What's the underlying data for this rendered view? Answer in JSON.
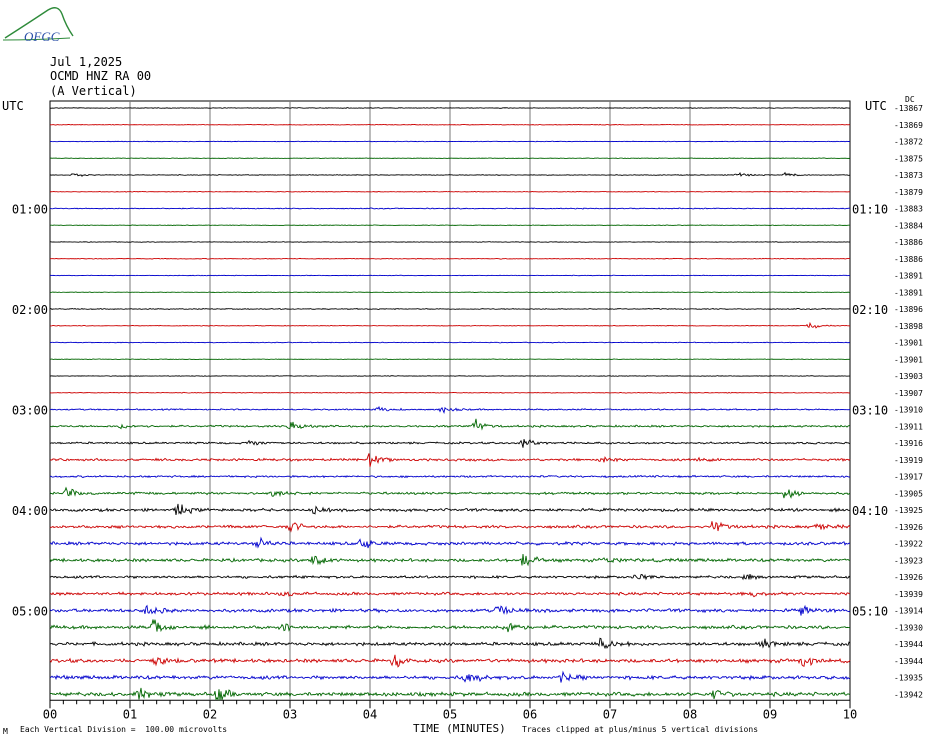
{
  "header": {
    "date": "Jul 1,2025",
    "station": "OCMD HNZ RA 00",
    "component": "(A Vertical)",
    "logo_text": "OFGC",
    "utc_left": "UTC",
    "utc_right": "UTC",
    "ordinate_label": "DC"
  },
  "footer": {
    "scale_note": "Each Vertical Division =  100.00 microvolts",
    "xlabel": "TIME (MINUTES)",
    "clip_note": "Traces clipped at plus/minus 5 vertical divisions",
    "corner_mark": "M"
  },
  "chart_data": {
    "type": "line",
    "title": "",
    "xlabel": "TIME (MINUTES)",
    "xlim": [
      0,
      10
    ],
    "x_ticks": [
      "00",
      "01",
      "02",
      "03",
      "04",
      "05",
      "06",
      "07",
      "08",
      "09",
      "10"
    ],
    "left_time_labels": [
      "01:00",
      "02:00",
      "03:00",
      "04:00",
      "05:00"
    ],
    "right_time_labels": [
      "01:10",
      "02:10",
      "03:10",
      "04:10",
      "05:10"
    ],
    "hour_label_rows": [
      6,
      12,
      18,
      24,
      30
    ],
    "trace_colors": [
      "#000000",
      "#cc0000",
      "#0000cc",
      "#006600"
    ],
    "dc_offsets": [
      -13867,
      -13869,
      -13872,
      -13875,
      -13873,
      -13879,
      -13883,
      -13884,
      -13886,
      -13886,
      -13891,
      -13891,
      -13896,
      -13898,
      -13901,
      -13901,
      -13903,
      -13907,
      -13910,
      -13911,
      -13916,
      -13919,
      -13917,
      -13905,
      -13925,
      -13926,
      -13922,
      -13923,
      -13926,
      -13939,
      -13914,
      -13930,
      -13944,
      -13944,
      -13935,
      -13942
    ],
    "noise_levels": [
      0.3,
      0.25,
      0.25,
      0.25,
      0.3,
      0.25,
      0.4,
      0.25,
      0.25,
      0.3,
      0.25,
      0.25,
      0.4,
      0.25,
      0.3,
      0.25,
      0.25,
      0.3,
      0.6,
      0.8,
      0.8,
      1.0,
      0.8,
      1.0,
      1.2,
      1.2,
      1.3,
      1.3,
      1.1,
      1.2,
      1.4,
      1.4,
      1.4,
      1.5,
      1.5,
      1.6
    ],
    "events": [
      {
        "row": 4,
        "t": 0.3,
        "amp": 2
      },
      {
        "row": 4,
        "t": 8.6,
        "amp": 2
      },
      {
        "row": 4,
        "t": 9.2,
        "amp": 2
      },
      {
        "row": 13,
        "t": 9.5,
        "amp": 3
      },
      {
        "row": 18,
        "t": 4.1,
        "amp": 3
      },
      {
        "row": 18,
        "t": 4.9,
        "amp": 3
      },
      {
        "row": 19,
        "t": 0.9,
        "amp": 3
      },
      {
        "row": 19,
        "t": 3.0,
        "amp": 6
      },
      {
        "row": 19,
        "t": 5.3,
        "amp": 7
      },
      {
        "row": 20,
        "t": 5.9,
        "amp": 5
      },
      {
        "row": 20,
        "t": 2.5,
        "amp": 3
      },
      {
        "row": 21,
        "t": 4.0,
        "amp": 6
      },
      {
        "row": 21,
        "t": 6.9,
        "amp": 4
      },
      {
        "row": 21,
        "t": 8.1,
        "amp": 3
      },
      {
        "row": 23,
        "t": 0.2,
        "amp": 5
      },
      {
        "row": 23,
        "t": 9.2,
        "amp": 5
      },
      {
        "row": 23,
        "t": 2.8,
        "amp": 3
      },
      {
        "row": 24,
        "t": 1.6,
        "amp": 6
      },
      {
        "row": 24,
        "t": 3.3,
        "amp": 4
      },
      {
        "row": 25,
        "t": 3.0,
        "amp": 6
      },
      {
        "row": 25,
        "t": 8.3,
        "amp": 7
      },
      {
        "row": 25,
        "t": 9.6,
        "amp": 3
      },
      {
        "row": 26,
        "t": 2.6,
        "amp": 4
      },
      {
        "row": 26,
        "t": 3.9,
        "amp": 6
      },
      {
        "row": 27,
        "t": 3.3,
        "amp": 7
      },
      {
        "row": 27,
        "t": 5.9,
        "amp": 7
      },
      {
        "row": 27,
        "t": 6.9,
        "amp": 4
      },
      {
        "row": 28,
        "t": 7.3,
        "amp": 4
      },
      {
        "row": 28,
        "t": 8.7,
        "amp": 3
      },
      {
        "row": 29,
        "t": 2.9,
        "amp": 3
      },
      {
        "row": 29,
        "t": 8.8,
        "amp": 3
      },
      {
        "row": 30,
        "t": 1.2,
        "amp": 6
      },
      {
        "row": 30,
        "t": 5.6,
        "amp": 6
      },
      {
        "row": 30,
        "t": 9.4,
        "amp": 4
      },
      {
        "row": 31,
        "t": 1.3,
        "amp": 7
      },
      {
        "row": 31,
        "t": 5.7,
        "amp": 8
      },
      {
        "row": 31,
        "t": 2.9,
        "amp": 4
      },
      {
        "row": 32,
        "t": 6.9,
        "amp": 6
      },
      {
        "row": 32,
        "t": 8.9,
        "amp": 4
      },
      {
        "row": 33,
        "t": 1.3,
        "amp": 5
      },
      {
        "row": 33,
        "t": 4.3,
        "amp": 6
      },
      {
        "row": 33,
        "t": 9.4,
        "amp": 6
      },
      {
        "row": 34,
        "t": 5.2,
        "amp": 7
      },
      {
        "row": 34,
        "t": 6.4,
        "amp": 4
      },
      {
        "row": 35,
        "t": 1.1,
        "amp": 6
      },
      {
        "row": 35,
        "t": 2.1,
        "amp": 8
      },
      {
        "row": 35,
        "t": 8.3,
        "amp": 5
      }
    ]
  }
}
